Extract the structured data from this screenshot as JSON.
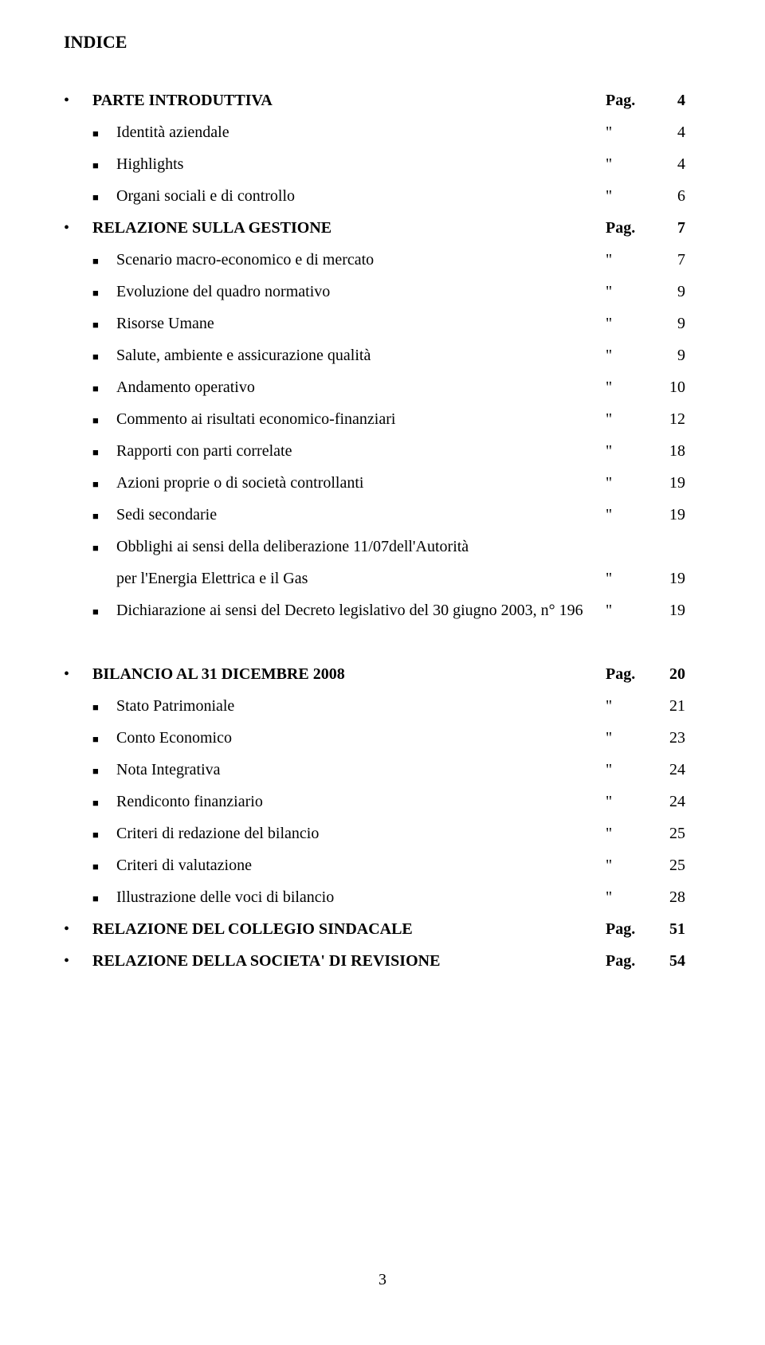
{
  "title": "INDICE",
  "pag_label": "Pag.",
  "ditto": "\"",
  "page_number": "3",
  "sections": [
    {
      "header": {
        "label": "PARTE INTRODUTTIVA",
        "page": "4",
        "show_pag": true
      },
      "items": [
        {
          "label": "Identità aziendale",
          "page": "4"
        },
        {
          "label": "Highlights",
          "page": "4"
        },
        {
          "label": "Organi sociali e di controllo",
          "page": "6"
        }
      ]
    },
    {
      "header": {
        "label": "RELAZIONE SULLA GESTIONE",
        "page": "7",
        "show_pag": true
      },
      "items": [
        {
          "label": "Scenario macro-economico e di mercato",
          "page": "7"
        },
        {
          "label": "Evoluzione del quadro normativo",
          "page": "9"
        },
        {
          "label": "Risorse Umane",
          "page": "9"
        },
        {
          "label": "Salute, ambiente e assicurazione qualità",
          "page": "9"
        },
        {
          "label": "Andamento operativo",
          "page": "10"
        },
        {
          "label": "Commento ai risultati economico-finanziari",
          "page": "12"
        },
        {
          "label": "Rapporti con parti correlate",
          "page": "18"
        },
        {
          "label": "Azioni proprie o di società controllanti",
          "page": "19"
        },
        {
          "label": "Sedi secondarie",
          "page": "19"
        },
        {
          "label": "Obblighi ai sensi della deliberazione 11/07dell'Autorità",
          "label2": "per l'Energia Elettrica e il Gas",
          "page": "19"
        },
        {
          "label": "Dichiarazione ai sensi del Decreto legislativo del 30 giugno 2003,  n° 196",
          "page": "19"
        }
      ]
    },
    {
      "header": {
        "label": "BILANCIO AL 31 DICEMBRE 2008",
        "page": "20",
        "show_pag": true
      },
      "items": [
        {
          "label": "Stato Patrimoniale",
          "page": "21"
        },
        {
          "label": "Conto Economico",
          "page": "23"
        },
        {
          "label": "Nota Integrativa",
          "page": "24"
        },
        {
          "label": "Rendiconto finanziario",
          "page": "24"
        },
        {
          "label": "Criteri di redazione del bilancio",
          "page": "25"
        },
        {
          "label": "Criteri di valutazione",
          "page": "25"
        },
        {
          "label": "Illustrazione delle voci di bilancio",
          "page": "28"
        }
      ],
      "footer_headers": [
        {
          "label": "RELAZIONE DEL COLLEGIO SINDACALE",
          "page": "51",
          "show_pag": true
        },
        {
          "label": "RELAZIONE DELLA SOCIETA' DI REVISIONE",
          "page": "54",
          "show_pag": true
        }
      ]
    }
  ]
}
